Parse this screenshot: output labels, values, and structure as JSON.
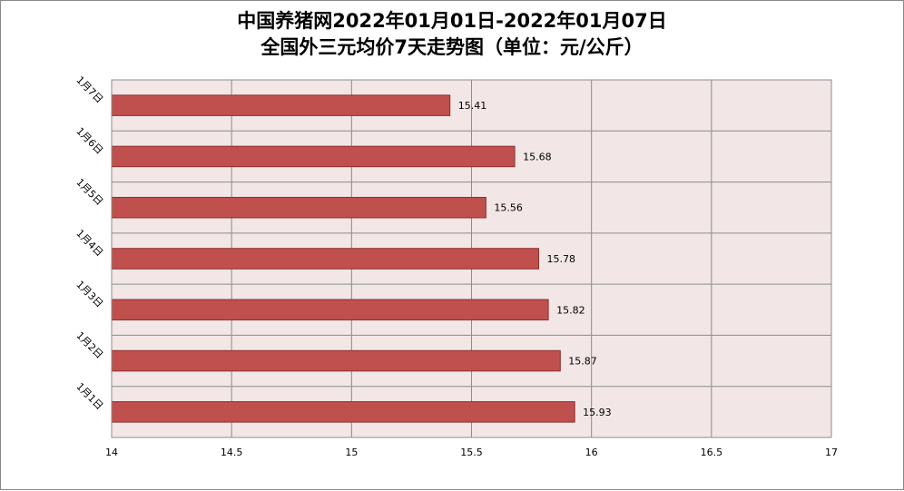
{
  "chart_data": {
    "type": "bar",
    "orientation": "horizontal",
    "title": "中国养猪网2022年01月01日-2022年01月07日",
    "subtitle": "全国外三元均价7天走势图（单位：元/公斤）",
    "categories": [
      "1月1日",
      "1月2日",
      "1月3日",
      "1月4日",
      "1月5日",
      "1月6日",
      "1月7日"
    ],
    "values": [
      15.93,
      15.87,
      15.82,
      15.78,
      15.56,
      15.68,
      15.41
    ],
    "data_labels": [
      "15.93",
      "15.87",
      "15.82",
      "15.78",
      "15.56",
      "15.68",
      "15.41"
    ],
    "xlim": [
      14,
      17
    ],
    "xticks": [
      "14",
      "14.5",
      "15",
      "15.5",
      "16",
      "16.5",
      "17"
    ],
    "grid": true,
    "legend": "none",
    "colors": {
      "bar_fill": "#c0504d",
      "bar_stroke": "#8c2f2c",
      "plot_bg": "#f2e6e6",
      "grid": "#8c8c8c"
    }
  }
}
